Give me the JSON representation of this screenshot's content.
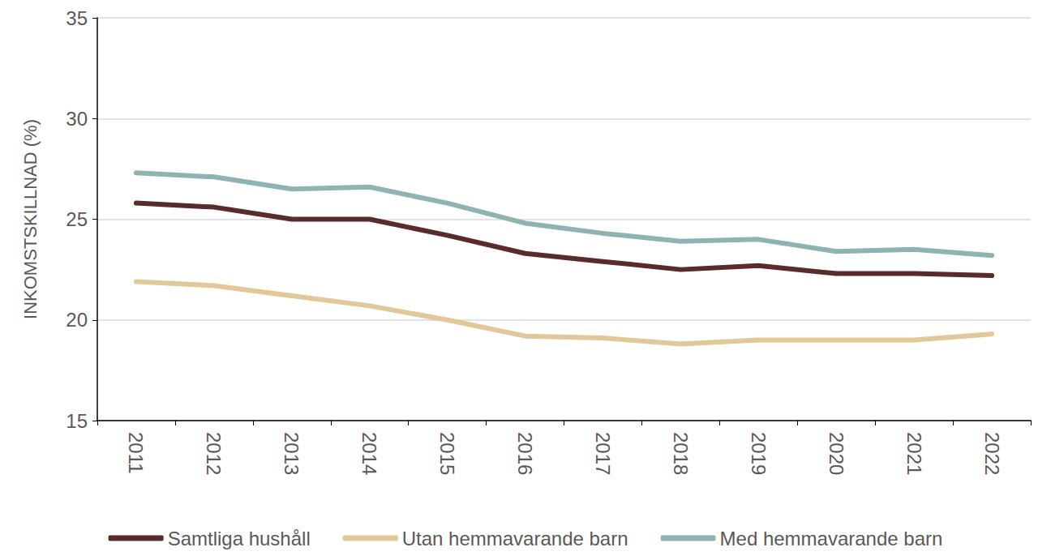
{
  "chart_data": {
    "type": "line",
    "y_label": "INKOMSTSKILLNAD (%)",
    "categories": [
      "2011",
      "2012",
      "2013",
      "2014",
      "2015",
      "2016",
      "2017",
      "2018",
      "2019",
      "2020",
      "2021",
      "2022"
    ],
    "series": [
      {
        "name": "Samtliga hushåll",
        "color": "#5a2b2b",
        "values": [
          25.8,
          25.6,
          25.0,
          25.0,
          24.2,
          23.3,
          22.9,
          22.5,
          22.7,
          22.3,
          22.3,
          22.2
        ]
      },
      {
        "name": "Utan hemmavarande barn",
        "color": "#e2c799",
        "values": [
          21.9,
          21.7,
          21.2,
          20.7,
          20.0,
          19.2,
          19.1,
          18.8,
          19.0,
          19.0,
          19.0,
          19.3
        ]
      },
      {
        "name": "Med hemmavarande barn",
        "color": "#8fb3b0",
        "values": [
          27.3,
          27.1,
          26.5,
          26.6,
          25.8,
          24.8,
          24.3,
          23.9,
          24.0,
          23.4,
          23.5,
          23.2
        ]
      }
    ],
    "ylim": [
      15,
      35
    ],
    "yticks": [
      15,
      20,
      25,
      30,
      35
    ],
    "grid": true,
    "legend": "bottom"
  }
}
